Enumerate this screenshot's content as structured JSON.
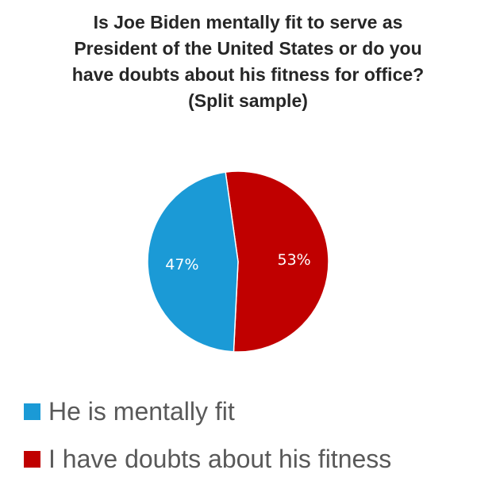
{
  "chart_data": {
    "type": "pie",
    "title_lines": [
      "Is Joe Biden mentally fit to serve as",
      "President of the United States or do you",
      "have doubts about his fitness for office?",
      "(Split sample)"
    ],
    "slices": [
      {
        "label": "He is mentally fit",
        "value": 47,
        "display": "47%",
        "color": "#1b9ad6"
      },
      {
        "label": "I have doubts about his fitness",
        "value": 53,
        "display": "53%",
        "color": "#c00000"
      }
    ],
    "legend_position": "bottom-left"
  }
}
